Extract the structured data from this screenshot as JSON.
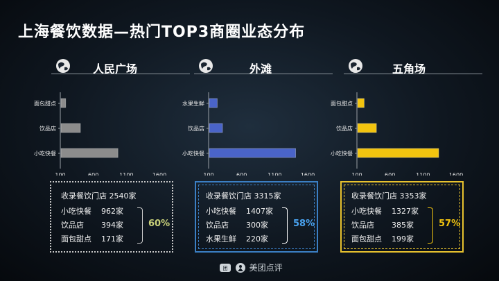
{
  "title": "上海餐饮数据—热门TOP3商圈业态分布",
  "colors": {
    "gray": "#8c8c8c",
    "blue": "#4a64c8",
    "yellow": "#f2c40f",
    "axis": "#9aa0a6"
  },
  "areas": [
    {
      "name": "人民广场",
      "summary_label": "收录餐饮门店",
      "summary_value": "2540家",
      "items": [
        {
          "label": "小吃快餐",
          "value": "962家"
        },
        {
          "label": "饮品店",
          "value": "394家"
        },
        {
          "label": "面包甜点",
          "value": "171家"
        }
      ],
      "percent": "60%"
    },
    {
      "name": "外滩",
      "summary_label": "收录餐饮门店",
      "summary_value": "3315家",
      "items": [
        {
          "label": "小吃快餐",
          "value": "1407家"
        },
        {
          "label": "饮品店",
          "value": "300家"
        },
        {
          "label": "水果生鲜",
          "value": "220家"
        }
      ],
      "percent": "58%"
    },
    {
      "name": "五角场",
      "summary_label": "收录餐饮门店",
      "summary_value": "3353家",
      "items": [
        {
          "label": "小吃快餐",
          "value": "1327家"
        },
        {
          "label": "饮品店",
          "value": "385家"
        },
        {
          "label": "面包甜点",
          "value": "199家"
        }
      ],
      "percent": "57%"
    }
  ],
  "chart_data": [
    {
      "type": "bar",
      "orientation": "horizontal",
      "title": "人民广场",
      "categories": [
        "面包甜点",
        "饮品店",
        "小吃快餐"
      ],
      "values": [
        171,
        394,
        962
      ],
      "xlim": [
        100,
        1600
      ],
      "xticks": [
        "100",
        "600",
        "1100",
        "1600"
      ],
      "color": "#8c8c8c"
    },
    {
      "type": "bar",
      "orientation": "horizontal",
      "title": "外滩",
      "categories": [
        "水果生鲜",
        "饮品店",
        "小吃快餐"
      ],
      "values": [
        220,
        300,
        1407
      ],
      "xlim": [
        100,
        1600
      ],
      "xticks": [
        "100",
        "600",
        "1100",
        "1600"
      ],
      "color": "#4a64c8"
    },
    {
      "type": "bar",
      "orientation": "horizontal",
      "title": "五角场",
      "categories": [
        "面包甜点",
        "饮品店",
        "小吃快餐"
      ],
      "values": [
        199,
        385,
        1327
      ],
      "xlim": [
        100,
        1600
      ],
      "xticks": [
        "100",
        "600",
        "1100",
        "1600"
      ],
      "color": "#f2c40f"
    }
  ],
  "footer": {
    "brand": "美团点评"
  }
}
